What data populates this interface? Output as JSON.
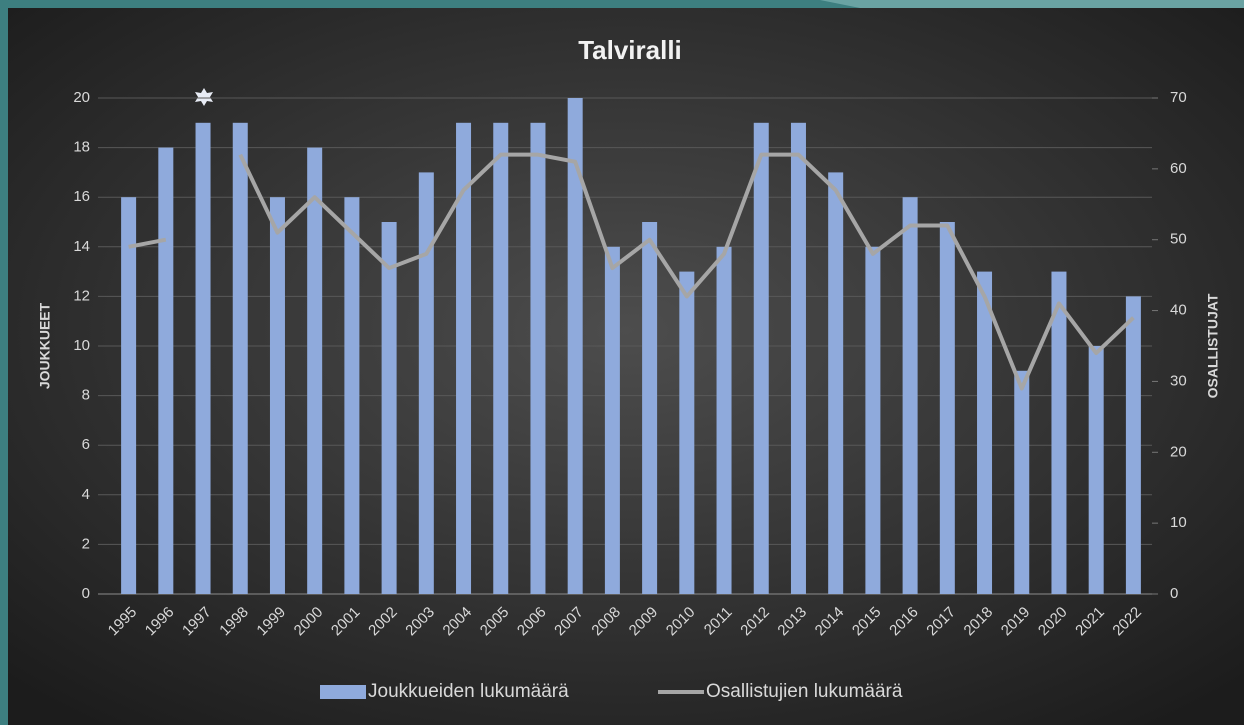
{
  "chart_data": {
    "type": "bar",
    "title": "Talviralli",
    "categories": [
      "1995",
      "1996",
      "1997",
      "1998",
      "1999",
      "2000",
      "2001",
      "2002",
      "2003",
      "2004",
      "2005",
      "2006",
      "2007",
      "2008",
      "2009",
      "2010",
      "2011",
      "2012",
      "2013",
      "2014",
      "2015",
      "2016",
      "2017",
      "2018",
      "2019",
      "2020",
      "2021",
      "2022"
    ],
    "series": [
      {
        "name": "Joukkueiden lukumäärä",
        "type": "bar",
        "color": "#8faadc",
        "values": [
          16,
          18,
          19,
          19,
          16,
          18,
          16,
          15,
          17,
          19,
          19,
          19,
          20,
          14,
          15,
          13,
          14,
          19,
          19,
          17,
          14,
          16,
          15,
          13,
          9,
          13,
          10,
          12
        ]
      },
      {
        "name": "Osallistujien lukumäärä",
        "type": "line",
        "axis": "y2",
        "color": "#a6a6a6",
        "values": [
          49,
          50,
          null,
          62,
          51,
          56,
          51,
          46,
          48,
          57,
          62,
          62,
          61,
          46,
          50,
          42,
          48,
          62,
          62,
          57,
          48,
          52,
          52,
          42,
          29,
          41,
          34,
          39
        ]
      }
    ],
    "ylabel": "JOUKKUEET",
    "y2label": "OSALLISTUJAT",
    "ylim": [
      0,
      20
    ],
    "yticks": [
      0,
      2,
      4,
      6,
      8,
      10,
      12,
      14,
      16,
      18,
      20
    ],
    "y2lim": [
      0,
      70
    ],
    "y2ticks": [
      0,
      10,
      20,
      30,
      40,
      50,
      60,
      70
    ],
    "grid": true,
    "legend": "bottom"
  }
}
